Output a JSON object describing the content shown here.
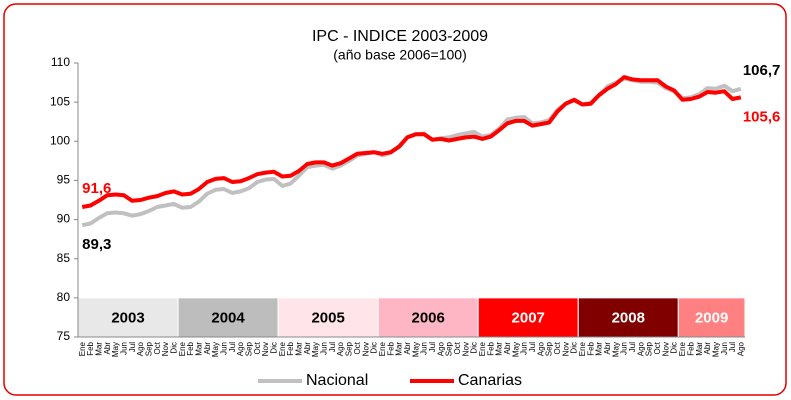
{
  "chart_data": {
    "type": "line",
    "title": "IPC - INDICE 2003-2009",
    "subtitle": "(año base 2006=100)",
    "categories": [
      "Ene",
      "Feb",
      "Mar",
      "Abr",
      "May",
      "Jun",
      "Jul",
      "Ago",
      "Sep",
      "Oct",
      "Nov",
      "Dic",
      "Ene",
      "Feb",
      "Mar",
      "Abr",
      "May",
      "Jun",
      "Jul",
      "Ago",
      "Sep",
      "Oct",
      "Nov",
      "Dic",
      "Ene",
      "Feb",
      "Mar",
      "Abr",
      "May",
      "Jun",
      "Jul",
      "Ago",
      "Sep",
      "Oct",
      "Nov",
      "Dic",
      "Ene",
      "Feb",
      "Mar",
      "Abr",
      "May",
      "Jun",
      "Jul",
      "Ago",
      "Sep",
      "Oct",
      "Nov",
      "Dic",
      "Ene",
      "Feb",
      "Mar",
      "Abr",
      "May",
      "Jun",
      "Jul",
      "Ago",
      "Sep",
      "Oct",
      "Nov",
      "Dic",
      "Ene",
      "Feb",
      "Mar",
      "Abr",
      "May",
      "Jun",
      "Jul",
      "Ago",
      "Sep",
      "Oct",
      "Nov",
      "Dic",
      "Ene",
      "Feb",
      "Mar",
      "Abr",
      "May",
      "Jun",
      "Jul",
      "Ago"
    ],
    "series": [
      {
        "name": "Nacional",
        "color": "#c0c0c0",
        "value_label_color": "#000000",
        "values": [
          89.3,
          89.5,
          90.2,
          90.8,
          90.9,
          90.8,
          90.5,
          90.7,
          91.1,
          91.6,
          91.8,
          92.0,
          91.5,
          91.6,
          92.3,
          93.3,
          93.8,
          93.9,
          93.4,
          93.6,
          94.0,
          94.8,
          95.1,
          95.2,
          94.3,
          94.6,
          95.6,
          96.7,
          96.9,
          97.0,
          96.5,
          96.9,
          97.5,
          98.2,
          98.4,
          98.6,
          98.2,
          98.5,
          99.4,
          100.5,
          100.9,
          101.0,
          100.2,
          100.4,
          100.5,
          100.8,
          101.0,
          101.2,
          100.6,
          100.8,
          101.6,
          102.8,
          103.0,
          103.1,
          102.3,
          102.4,
          102.7,
          104.0,
          104.8,
          105.2,
          104.7,
          104.9,
          105.9,
          107.0,
          107.5,
          108.0,
          107.8,
          107.6,
          107.6,
          107.5,
          106.8,
          106.4,
          105.5,
          105.6,
          106.0,
          106.8,
          106.7,
          107.1,
          106.4,
          106.7
        ],
        "value_labels": [
          "89,3",
          null,
          null,
          null,
          null,
          null,
          null,
          null,
          null,
          null,
          null,
          null,
          null,
          null,
          null,
          null,
          null,
          null,
          null,
          null,
          null,
          null,
          null,
          null,
          null,
          null,
          null,
          null,
          null,
          null,
          null,
          null,
          null,
          null,
          null,
          null,
          null,
          null,
          null,
          null,
          null,
          null,
          null,
          null,
          null,
          null,
          null,
          null,
          null,
          null,
          null,
          null,
          null,
          null,
          null,
          null,
          null,
          null,
          null,
          null,
          null,
          null,
          null,
          null,
          null,
          null,
          null,
          null,
          null,
          null,
          null,
          null,
          null,
          null,
          null,
          null,
          null,
          null,
          null,
          "106,7"
        ]
      },
      {
        "name": "Canarias",
        "color": "#ff0000",
        "value_label_color": "#ff0000",
        "values": [
          91.6,
          91.8,
          92.4,
          93.1,
          93.2,
          93.1,
          92.4,
          92.5,
          92.8,
          93.0,
          93.4,
          93.6,
          93.2,
          93.3,
          93.9,
          94.8,
          95.2,
          95.3,
          94.8,
          94.9,
          95.3,
          95.8,
          96.0,
          96.1,
          95.5,
          95.6,
          96.2,
          97.1,
          97.3,
          97.3,
          96.9,
          97.2,
          97.8,
          98.4,
          98.5,
          98.6,
          98.4,
          98.6,
          99.3,
          100.5,
          100.9,
          100.9,
          100.2,
          100.3,
          100.1,
          100.3,
          100.5,
          100.6,
          100.3,
          100.6,
          101.4,
          102.3,
          102.6,
          102.6,
          102.0,
          102.2,
          102.4,
          103.8,
          104.8,
          105.3,
          104.7,
          104.8,
          105.9,
          106.7,
          107.3,
          108.2,
          107.9,
          107.8,
          107.8,
          107.8,
          107.0,
          106.5,
          105.3,
          105.4,
          105.7,
          106.3,
          106.2,
          106.4,
          105.4,
          105.6
        ],
        "value_labels": [
          "91,6",
          null,
          null,
          null,
          null,
          null,
          null,
          null,
          null,
          null,
          null,
          null,
          null,
          null,
          null,
          null,
          null,
          null,
          null,
          null,
          null,
          null,
          null,
          null,
          null,
          null,
          null,
          null,
          null,
          null,
          null,
          null,
          null,
          null,
          null,
          null,
          null,
          null,
          null,
          null,
          null,
          null,
          null,
          null,
          null,
          null,
          null,
          null,
          null,
          null,
          null,
          null,
          null,
          null,
          null,
          null,
          null,
          null,
          null,
          null,
          null,
          null,
          null,
          null,
          null,
          null,
          null,
          null,
          null,
          null,
          null,
          null,
          null,
          null,
          null,
          null,
          null,
          null,
          null,
          "105,6"
        ]
      }
    ],
    "year_bands": [
      {
        "label": "2003",
        "color": "#e8e8e8",
        "text_color": "#000000"
      },
      {
        "label": "2004",
        "color": "#bdbdbd",
        "text_color": "#000000"
      },
      {
        "label": "2005",
        "color": "#ffe4ea",
        "text_color": "#000000"
      },
      {
        "label": "2006",
        "color": "#ffb6c4",
        "text_color": "#000000"
      },
      {
        "label": "2007",
        "color": "#ff0000",
        "text_color": "#ffffff"
      },
      {
        "label": "2008",
        "color": "#800000",
        "text_color": "#ffffff"
      },
      {
        "label": "2009",
        "color": "#ff8080",
        "text_color": "#ffffff"
      }
    ],
    "ylim": [
      75,
      110
    ],
    "yticks": [
      75,
      80,
      85,
      90,
      95,
      100,
      105,
      110
    ],
    "grid": false,
    "legend": "bottom"
  }
}
